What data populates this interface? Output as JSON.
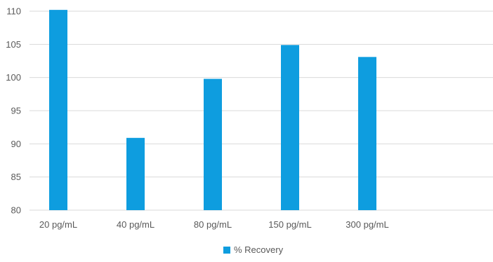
{
  "chart_data": {
    "type": "bar",
    "title": "",
    "xlabel": "",
    "ylabel": "",
    "categories": [
      "20 pg/mL",
      "40 pg/mL",
      "80 pg/mL",
      "150 pg/mL",
      "300 pg/mL"
    ],
    "series": [
      {
        "name": "% Recovery",
        "values": [
          110.2,
          90.9,
          99.8,
          104.9,
          103.1
        ],
        "color": "#0e9ddf"
      }
    ],
    "ylim": [
      80,
      110
    ],
    "yticks": [
      80,
      85,
      90,
      95,
      100,
      105,
      110
    ],
    "grid": true,
    "gridline_color": "#d9d9d9",
    "legend": {
      "position": "bottom",
      "entries": [
        "% Recovery"
      ]
    }
  }
}
